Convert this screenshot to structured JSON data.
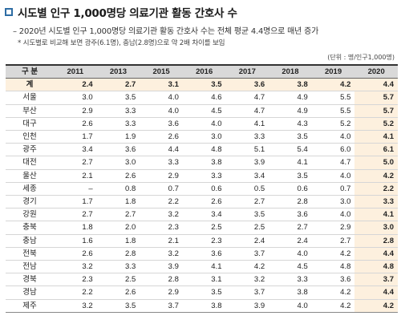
{
  "title": "시도별 인구 1,000명당 의료기관 활동 간호사 수",
  "subtitle": "– 2020년 시도별 인구 1,000명당 의료기관 활동 간호사 수는 전체 평균 4.4명으로 매년 증가",
  "note": "* 시도별로 비교해 보면 광주(6.1명), 충남(2.8명)으로 약 2배 차이를 보임",
  "unit": "(단위 : 명/인구1,000명)",
  "table": {
    "corner": "구 분",
    "years": [
      "2011",
      "2013",
      "2015",
      "2016",
      "2017",
      "2018",
      "2019",
      "2020"
    ],
    "rows": [
      {
        "region": "계",
        "values": [
          "2.4",
          "2.7",
          "3.1",
          "3.5",
          "3.6",
          "3.8",
          "4.2",
          "4.4"
        ]
      },
      {
        "region": "서울",
        "values": [
          "3.0",
          "3.5",
          "4.0",
          "4.6",
          "4.7",
          "4.9",
          "5.5",
          "5.7"
        ]
      },
      {
        "region": "부산",
        "values": [
          "2.9",
          "3.3",
          "4.0",
          "4.5",
          "4.7",
          "4.9",
          "5.5",
          "5.7"
        ]
      },
      {
        "region": "대구",
        "values": [
          "2.6",
          "3.3",
          "3.6",
          "4.0",
          "4.1",
          "4.3",
          "5.2",
          "5.2"
        ]
      },
      {
        "region": "인천",
        "values": [
          "1.7",
          "1.9",
          "2.6",
          "3.0",
          "3.3",
          "3.5",
          "4.0",
          "4.1"
        ]
      },
      {
        "region": "광주",
        "values": [
          "3.4",
          "3.6",
          "4.4",
          "4.8",
          "5.1",
          "5.4",
          "6.0",
          "6.1"
        ]
      },
      {
        "region": "대전",
        "values": [
          "2.7",
          "3.0",
          "3.3",
          "3.8",
          "3.9",
          "4.1",
          "4.7",
          "5.0"
        ]
      },
      {
        "region": "울산",
        "values": [
          "2.1",
          "2.6",
          "2.9",
          "3.3",
          "3.4",
          "3.5",
          "4.0",
          "4.2"
        ]
      },
      {
        "region": "세종",
        "values": [
          "–",
          "0.8",
          "0.7",
          "0.6",
          "0.5",
          "0.6",
          "0.7",
          "2.2"
        ]
      },
      {
        "region": "경기",
        "values": [
          "1.7",
          "1.8",
          "2.2",
          "2.6",
          "2.7",
          "2.8",
          "3.0",
          "3.3"
        ]
      },
      {
        "region": "강원",
        "values": [
          "2.7",
          "2.7",
          "3.2",
          "3.4",
          "3.5",
          "3.6",
          "4.0",
          "4.1"
        ]
      },
      {
        "region": "충북",
        "values": [
          "1.8",
          "2.0",
          "2.3",
          "2.5",
          "2.5",
          "2.7",
          "2.9",
          "3.0"
        ]
      },
      {
        "region": "충남",
        "values": [
          "1.6",
          "1.8",
          "2.1",
          "2.3",
          "2.4",
          "2.4",
          "2.7",
          "2.8"
        ]
      },
      {
        "region": "전북",
        "values": [
          "2.6",
          "2.8",
          "3.2",
          "3.6",
          "3.7",
          "4.0",
          "4.2",
          "4.4"
        ]
      },
      {
        "region": "전남",
        "values": [
          "3.2",
          "3.3",
          "3.9",
          "4.1",
          "4.2",
          "4.5",
          "4.8",
          "4.8"
        ]
      },
      {
        "region": "경북",
        "values": [
          "2.3",
          "2.5",
          "2.8",
          "3.1",
          "3.2",
          "3.3",
          "3.6",
          "3.7"
        ]
      },
      {
        "region": "경남",
        "values": [
          "2.2",
          "2.6",
          "2.9",
          "3.5",
          "3.7",
          "3.8",
          "4.2",
          "4.4"
        ]
      },
      {
        "region": "제주",
        "values": [
          "3.2",
          "3.5",
          "3.7",
          "3.8",
          "3.9",
          "4.0",
          "4.2",
          "4.2"
        ]
      }
    ]
  }
}
